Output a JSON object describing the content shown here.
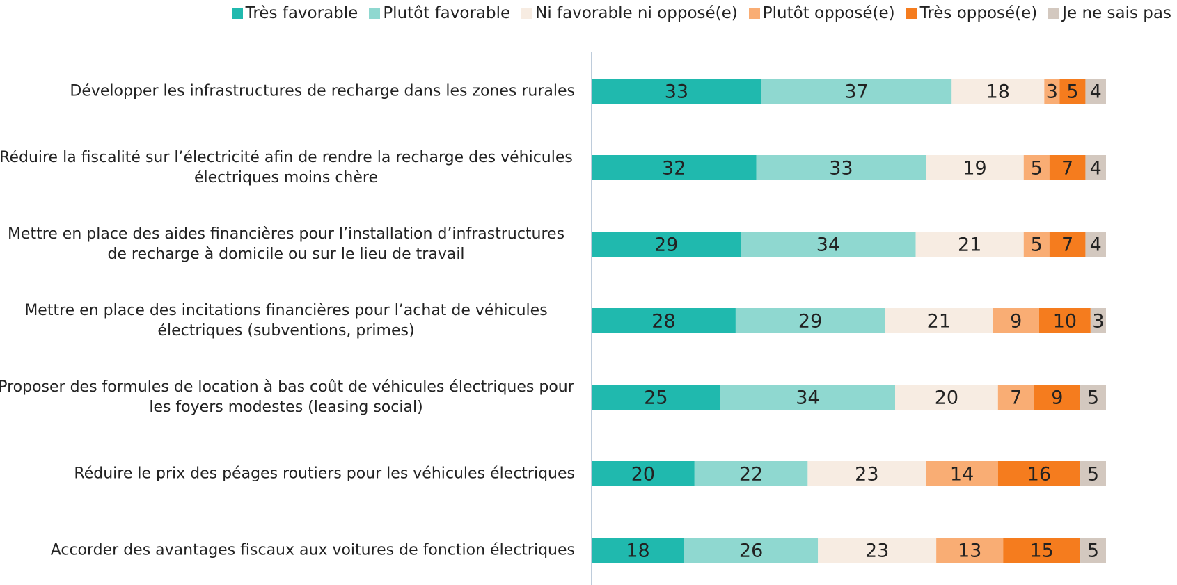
{
  "chart_data": {
    "type": "stacked-bar-horizontal",
    "categories": [
      "Développer les infrastructures de recharge dans les zones rurales",
      "Réduire la fiscalité sur l’électricité afin de rendre la recharge des véhicules électriques moins chère",
      "Mettre en place des aides financières pour l’installation d’infrastructures de recharge à domicile ou sur le lieu de travail",
      "Mettre en place des incitations financières pour l’achat de véhicules électriques (subventions, primes)",
      "Proposer des formules de location à bas coût de véhicules électriques pour les foyers modestes (leasing social)",
      "Réduire le prix des péages routiers pour les véhicules électriques",
      "Accorder des avantages fiscaux aux voitures de fonction électriques"
    ],
    "series": [
      {
        "name": "Très favorable",
        "color": "#20b9ae",
        "values": [
          33,
          32,
          29,
          28,
          25,
          20,
          18
        ]
      },
      {
        "name": "Plutôt favorable",
        "color": "#8fd8d0",
        "values": [
          37,
          33,
          34,
          29,
          34,
          22,
          26
        ]
      },
      {
        "name": "Ni favorable ni opposé(e)",
        "color": "#f7ece2",
        "values": [
          18,
          19,
          21,
          21,
          20,
          23,
          23
        ]
      },
      {
        "name": "Plutôt opposé(e)",
        "color": "#f9ad74",
        "values": [
          3,
          5,
          5,
          9,
          7,
          14,
          13
        ]
      },
      {
        "name": "Très opposé(e)",
        "color": "#f57c1e",
        "values": [
          5,
          7,
          7,
          10,
          9,
          16,
          15
        ]
      },
      {
        "name": "Je ne sais pas",
        "color": "#d3c8bf",
        "values": [
          4,
          4,
          4,
          3,
          5,
          5,
          5
        ]
      }
    ],
    "xlim": [
      0,
      100
    ],
    "legend": "top"
  }
}
